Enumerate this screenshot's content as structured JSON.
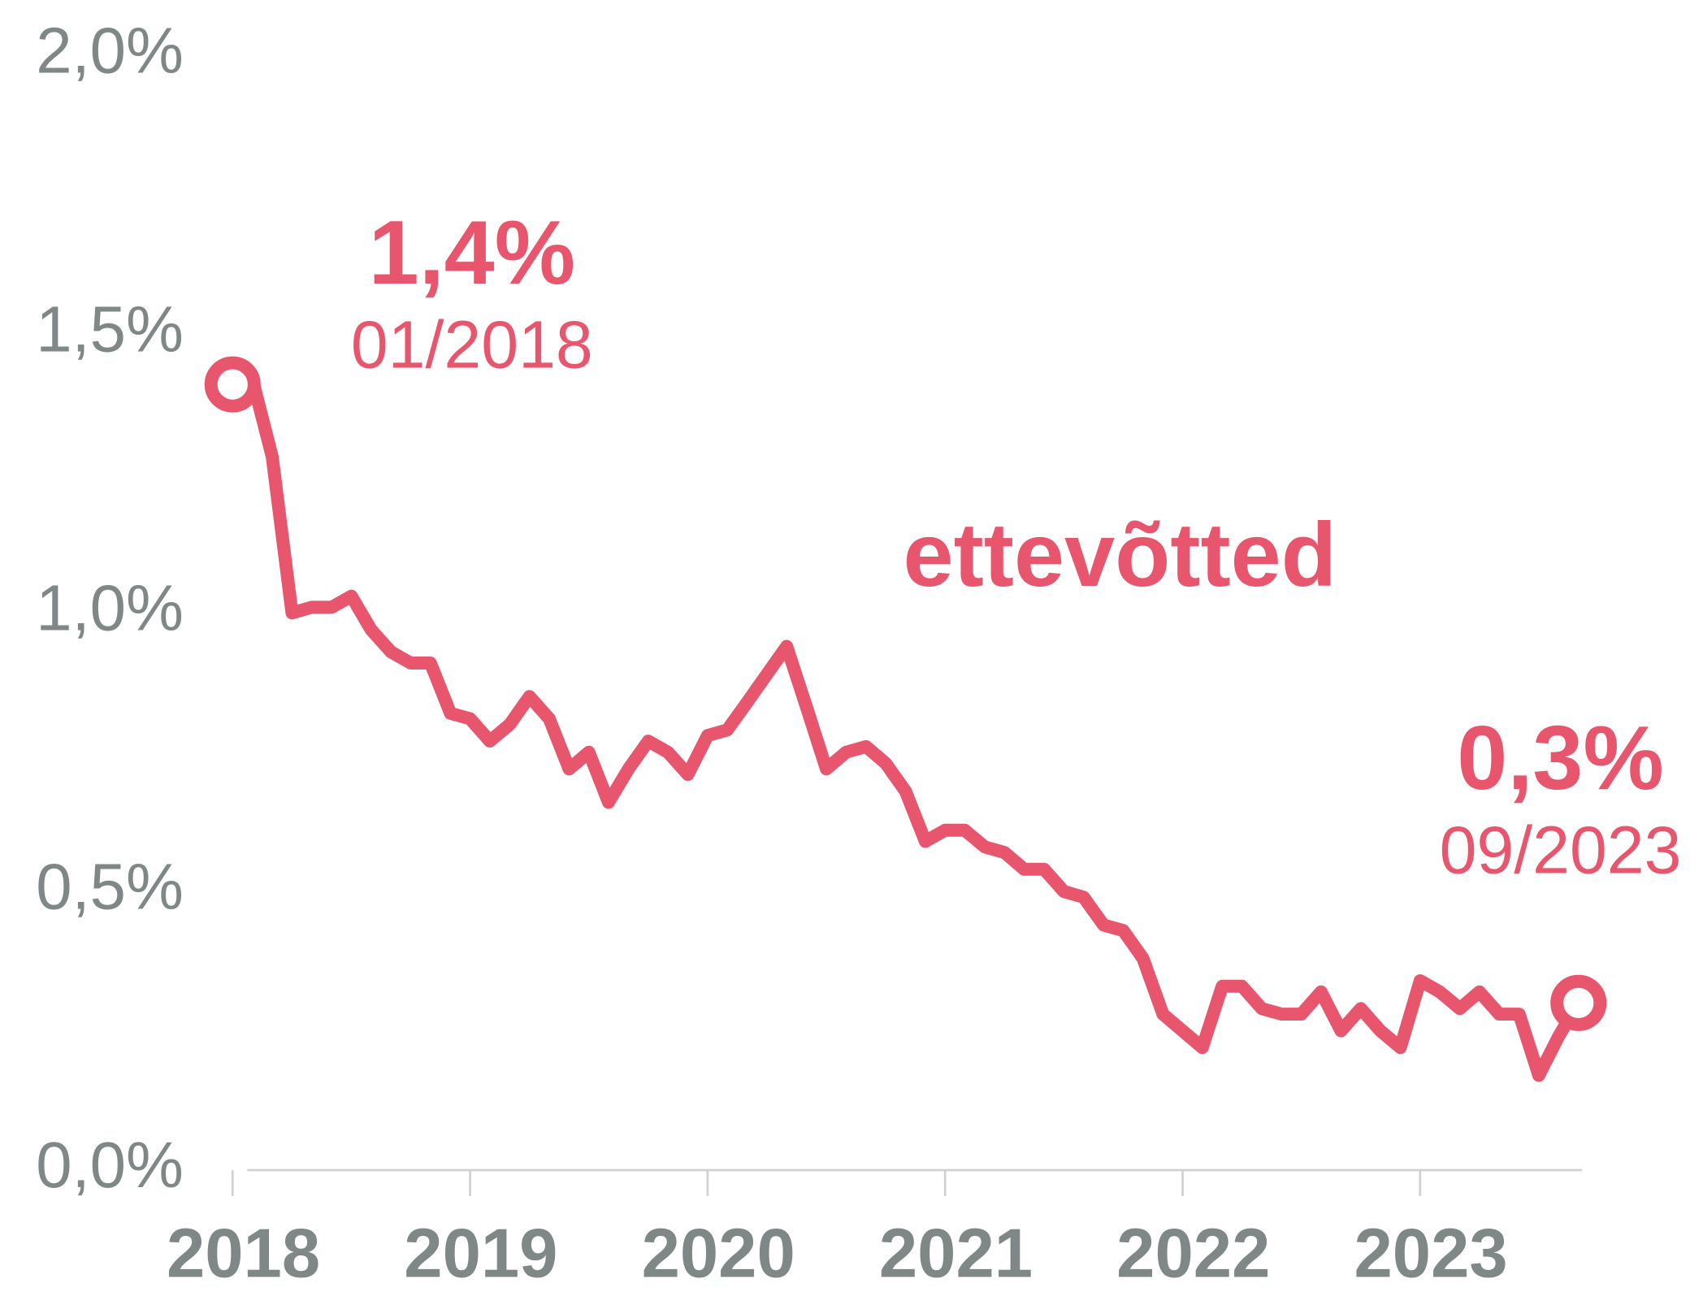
{
  "chart_data": {
    "type": "line",
    "annotations": [
      "1,4%",
      "01/2018",
      "ettevõtted",
      "0,3%",
      "09/2023"
    ],
    "series": [
      {
        "name": "ettevõtted",
        "color": "#e8566e",
        "x": [
          2018.0,
          2018.083,
          2018.167,
          2018.25,
          2018.333,
          2018.417,
          2018.5,
          2018.583,
          2018.667,
          2018.75,
          2018.833,
          2018.917,
          2019.0,
          2019.083,
          2019.167,
          2019.25,
          2019.333,
          2019.417,
          2019.5,
          2019.583,
          2019.667,
          2019.75,
          2019.833,
          2019.917,
          2020.0,
          2020.083,
          2020.167,
          2020.25,
          2020.333,
          2020.417,
          2020.5,
          2020.583,
          2020.667,
          2020.75,
          2020.833,
          2020.917,
          2021.0,
          2021.083,
          2021.167,
          2021.25,
          2021.333,
          2021.417,
          2021.5,
          2021.583,
          2021.667,
          2021.75,
          2021.833,
          2021.917,
          2022.0,
          2022.083,
          2022.167,
          2022.25,
          2022.333,
          2022.417,
          2022.5,
          2022.583,
          2022.667,
          2022.75,
          2022.833,
          2022.917,
          2023.0,
          2023.083,
          2023.167,
          2023.25,
          2023.333,
          2023.417,
          2023.5,
          2023.583,
          2023.667
        ],
        "values": [
          1.41,
          1.42,
          1.28,
          1.0,
          1.01,
          1.01,
          1.03,
          0.97,
          0.93,
          0.91,
          0.91,
          0.82,
          0.81,
          0.77,
          0.8,
          0.85,
          0.81,
          0.72,
          0.75,
          0.66,
          0.72,
          0.77,
          0.75,
          0.71,
          0.78,
          0.79,
          0.84,
          0.89,
          0.94,
          0.83,
          0.72,
          0.75,
          0.76,
          0.73,
          0.68,
          0.59,
          0.61,
          0.61,
          0.58,
          0.57,
          0.54,
          0.54,
          0.5,
          0.49,
          0.44,
          0.43,
          0.38,
          0.28,
          0.25,
          0.22,
          0.33,
          0.33,
          0.29,
          0.28,
          0.28,
          0.32,
          0.25,
          0.29,
          0.25,
          0.22,
          0.34,
          0.32,
          0.29,
          0.32,
          0.28,
          0.28,
          0.17,
          0.24,
          0.3
        ]
      }
    ],
    "xlim": [
      2017.93,
      2023.75
    ],
    "xticks": [
      2018,
      2019,
      2020,
      2021,
      2022,
      2023
    ],
    "ylim": [
      0,
      2
    ],
    "yticks": [
      {
        "value": 0,
        "label": "0,0%"
      },
      {
        "value": 0.5,
        "label": "0,5%"
      },
      {
        "value": 1,
        "label": "1,0%"
      },
      {
        "value": 1.5,
        "label": "1,5%"
      },
      {
        "value": 2,
        "label": "2,0%"
      }
    ]
  }
}
